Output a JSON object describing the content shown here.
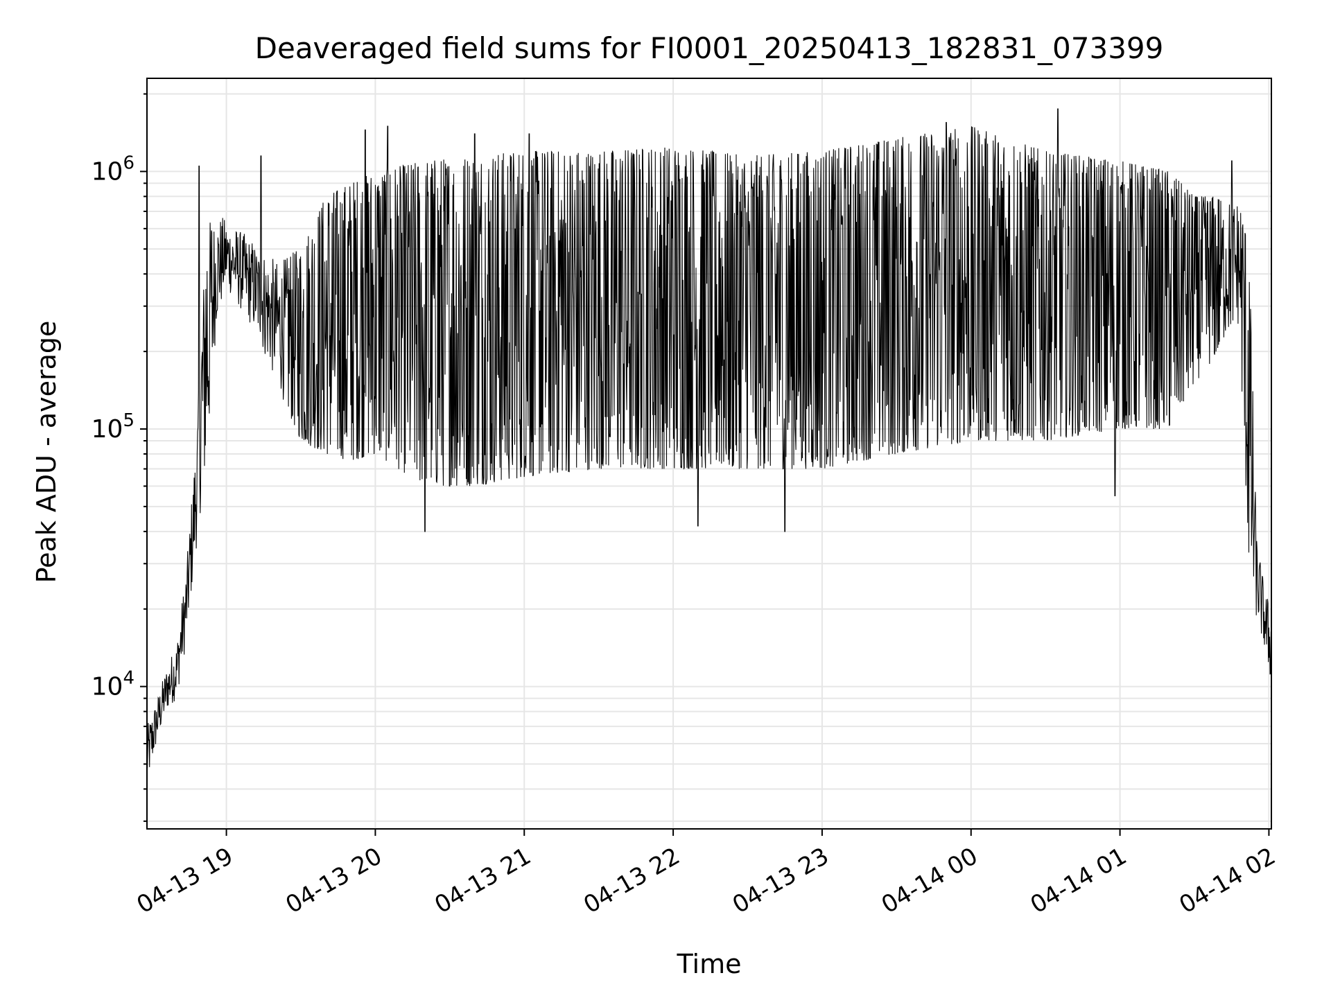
{
  "chart_data": {
    "type": "line",
    "title": "Deaveraged field sums for FI0001_20250413_182831_073399",
    "xlabel": "Time",
    "ylabel": "Peak ADU - average",
    "yscale": "log",
    "ylim": [
      2800,
      2300000
    ],
    "xlim": [
      "2025-04-13 18:28",
      "2025-04-14 02:01"
    ],
    "grid": true,
    "grid_minor": true,
    "line_color": "#000000",
    "grid_color": "#e6e6e6",
    "x_ticks": [
      "04-13 19",
      "04-13 20",
      "04-13 21",
      "04-13 22",
      "04-13 23",
      "04-14 00",
      "04-14 01",
      "04-14 02"
    ],
    "x_tick_times": [
      "2025-04-13 19:00",
      "2025-04-13 20:00",
      "2025-04-13 21:00",
      "2025-04-13 22:00",
      "2025-04-13 23:00",
      "2025-04-14 00:00",
      "2025-04-14 01:00",
      "2025-04-14 02:00"
    ],
    "y_ticks": [
      {
        "value": 10000,
        "base": "10",
        "exp": "4"
      },
      {
        "value": 100000,
        "base": "10",
        "exp": "5"
      },
      {
        "value": 1000000,
        "base": "10",
        "exp": "6"
      }
    ],
    "series": [
      {
        "envelope": {
          "x": [
            "2025-04-13 18:28",
            "2025-04-13 18:32",
            "2025-04-13 18:36",
            "2025-04-13 18:40",
            "2025-04-13 18:44",
            "2025-04-13 18:48",
            "2025-04-13 18:52",
            "2025-04-13 18:56",
            "2025-04-13 19:00",
            "2025-04-13 19:10",
            "2025-04-13 19:20",
            "2025-04-13 19:30",
            "2025-04-13 19:40",
            "2025-04-13 19:50",
            "2025-04-13 20:00",
            "2025-04-13 20:20",
            "2025-04-13 20:40",
            "2025-04-13 21:00",
            "2025-04-13 21:30",
            "2025-04-13 22:00",
            "2025-04-13 22:30",
            "2025-04-13 23:00",
            "2025-04-13 23:30",
            "2025-04-14 00:00",
            "2025-04-14 00:30",
            "2025-04-14 01:00",
            "2025-04-14 01:20",
            "2025-04-14 01:30",
            "2025-04-14 01:40",
            "2025-04-14 01:48",
            "2025-04-14 01:52",
            "2025-04-14 01:55",
            "2025-04-14 01:58",
            "2025-04-14 02:01"
          ],
          "low": [
            4000,
            6000,
            8000,
            9000,
            15000,
            35000,
            80000,
            250000,
            350000,
            250000,
            150000,
            90000,
            80000,
            75000,
            80000,
            60000,
            60000,
            65000,
            70000,
            70000,
            70000,
            70000,
            80000,
            90000,
            90000,
            100000,
            100000,
            150000,
            200000,
            250000,
            30000,
            18000,
            14000,
            10000
          ],
          "high": [
            7000,
            9000,
            12000,
            15000,
            30000,
            100000,
            600000,
            700000,
            650000,
            550000,
            450000,
            500000,
            800000,
            900000,
            1000000,
            1100000,
            1150000,
            1200000,
            1200000,
            1250000,
            1150000,
            1200000,
            1350000,
            1500000,
            1200000,
            1100000,
            1000000,
            800000,
            800000,
            800000,
            500000,
            40000,
            25000,
            20000
          ]
        },
        "spikes": [
          {
            "x": "2025-04-13 18:49",
            "y": 1050000
          },
          {
            "x": "2025-04-13 19:14",
            "y": 1150000
          },
          {
            "x": "2025-04-13 19:56",
            "y": 1450000
          },
          {
            "x": "2025-04-13 20:05",
            "y": 1500000
          },
          {
            "x": "2025-04-13 20:40",
            "y": 1400000
          },
          {
            "x": "2025-04-13 20:20",
            "y": 40000
          },
          {
            "x": "2025-04-13 21:02",
            "y": 1400000
          },
          {
            "x": "2025-04-13 22:10",
            "y": 42000
          },
          {
            "x": "2025-04-13 22:45",
            "y": 40000
          },
          {
            "x": "2025-04-13 23:50",
            "y": 1550000
          },
          {
            "x": "2025-04-14 00:35",
            "y": 1750000
          },
          {
            "x": "2025-04-14 00:58",
            "y": 55000
          },
          {
            "x": "2025-04-14 01:45",
            "y": 1100000
          }
        ]
      }
    ]
  }
}
